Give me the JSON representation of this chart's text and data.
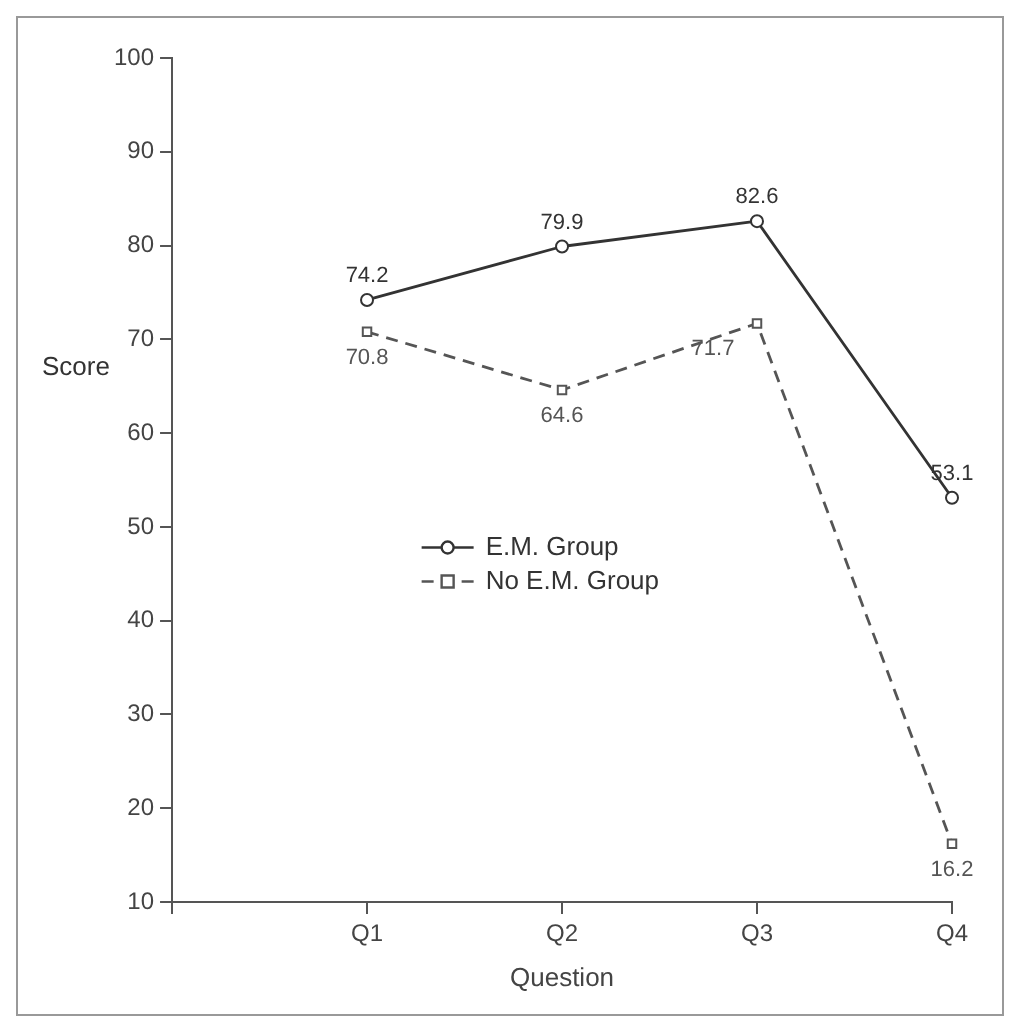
{
  "chart_data": {
    "type": "line",
    "xlabel": "Question",
    "ylabel": "Score",
    "categories": [
      null,
      "Q1",
      "Q2",
      "Q3",
      "Q4"
    ],
    "series": [
      {
        "name": "E.M. Group",
        "color": "#333333",
        "values": [
          null,
          74.2,
          79.9,
          82.6,
          53.1
        ],
        "marker": "circle",
        "line_style": "solid"
      },
      {
        "name": "No E.M. Group",
        "color": "#555555",
        "values": [
          null,
          70.8,
          64.6,
          71.7,
          16.2
        ],
        "marker": "square",
        "line_style": "dashed"
      }
    ],
    "ylim": [
      10,
      100
    ],
    "yticks": [
      10,
      20,
      30,
      40,
      50,
      60,
      70,
      80,
      90,
      100
    ],
    "grid": false,
    "legend": "center",
    "data_labels": true
  }
}
